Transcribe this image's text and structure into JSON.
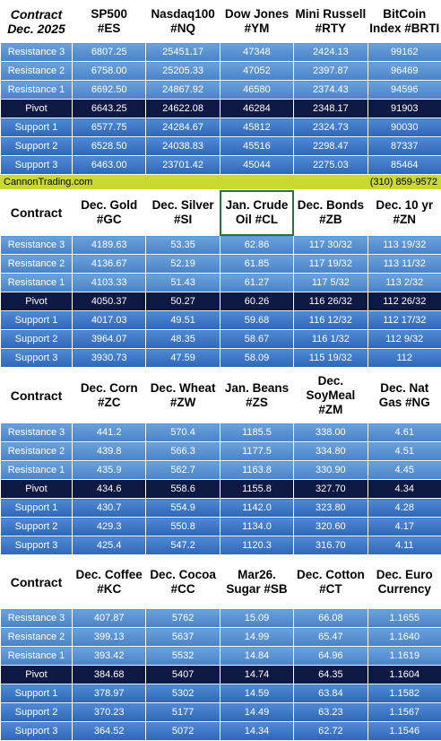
{
  "colors": {
    "resistance": "#5a92d4",
    "support": "#3f78c6",
    "pivot": "#0f1a44",
    "strip": "#c9d92f"
  },
  "footer": {
    "site": "CannonTrading.com",
    "phone": "(310) 859-9572"
  },
  "tables": [
    {
      "corner": "Contract\nDec. 2025",
      "headers": [
        "SP500\n#ES",
        "Nasdaq100\n#NQ",
        "Dow Jones\n#YM",
        "Mini Russell\n#RTY",
        "BitCoin\nIndex #BRTI"
      ],
      "rows": [
        {
          "label": "Resistance 3",
          "kind": "r",
          "values": [
            "6807.25",
            "25451.17",
            "47348",
            "2424.13",
            "99162"
          ]
        },
        {
          "label": "Resistance 2",
          "kind": "r",
          "values": [
            "6758.00",
            "25205.33",
            "47052",
            "2397.87",
            "96469"
          ]
        },
        {
          "label": "Resistance 1",
          "kind": "r",
          "values": [
            "6692.50",
            "24867.92",
            "46580",
            "2374.43",
            "94596"
          ]
        },
        {
          "label": "Pivot",
          "kind": "p",
          "values": [
            "6643.25",
            "24622.08",
            "46284",
            "2348.17",
            "91903"
          ]
        },
        {
          "label": "Support 1",
          "kind": "s",
          "values": [
            "6577.75",
            "24284.67",
            "45812",
            "2324.73",
            "90030"
          ]
        },
        {
          "label": "Support 2",
          "kind": "s",
          "values": [
            "6528.50",
            "24038.83",
            "45516",
            "2298.47",
            "87337"
          ]
        },
        {
          "label": "Support 3",
          "kind": "s",
          "values": [
            "6463.00",
            "23701.42",
            "45044",
            "2275.03",
            "85464"
          ]
        }
      ]
    },
    {
      "corner": "Contract",
      "headers": [
        "Dec. Gold\n#GC",
        "Dec. Silver\n#SI",
        "Jan. Crude\nOil #CL",
        "Dec. Bonds\n#ZB",
        "Dec. 10 yr\n#ZN"
      ],
      "rows": [
        {
          "label": "Resistance 3",
          "kind": "r",
          "values": [
            "4189.63",
            "53.35",
            "62.86",
            "117 30/32",
            "113 19/32"
          ]
        },
        {
          "label": "Resistance 2",
          "kind": "r",
          "values": [
            "4136.67",
            "52.19",
            "61.85",
            "117 19/32",
            "113 11/32"
          ]
        },
        {
          "label": "Resistance 1",
          "kind": "r",
          "values": [
            "4103.33",
            "51.43",
            "61.27",
            "117  5/32",
            "113  2/32"
          ]
        },
        {
          "label": "Pivot",
          "kind": "p",
          "values": [
            "4050.37",
            "50.27",
            "60.26",
            "116 26/32",
            "112 26/32"
          ]
        },
        {
          "label": "Support 1",
          "kind": "s",
          "values": [
            "4017.03",
            "49.51",
            "59.68",
            "116 12/32",
            "112 17/32"
          ]
        },
        {
          "label": "Support 2",
          "kind": "s",
          "values": [
            "3964.07",
            "48.35",
            "58.67",
            "116  1/32",
            "112  9/32"
          ]
        },
        {
          "label": "Support 3",
          "kind": "s",
          "values": [
            "3930.73",
            "47.59",
            "58.09",
            "115 19/32",
            "112"
          ]
        }
      ]
    },
    {
      "corner": "Contract",
      "headers": [
        "Dec. Corn\n#ZC",
        "Dec.  Wheat\n#ZW",
        "Jan. Beans\n#ZS",
        "Dec.\nSoyMeal\n#ZM",
        "Dec. Nat\nGas #NG"
      ],
      "rows": [
        {
          "label": "Resistance 3",
          "kind": "r",
          "values": [
            "441.2",
            "570.4",
            "1185.5",
            "338.00",
            "4.61"
          ]
        },
        {
          "label": "Resistance 2",
          "kind": "r",
          "values": [
            "439.8",
            "566.3",
            "1177.5",
            "334.80",
            "4.51"
          ]
        },
        {
          "label": "Resistance 1",
          "kind": "r",
          "values": [
            "435.9",
            "562.7",
            "1163.8",
            "330.90",
            "4.45"
          ]
        },
        {
          "label": "Pivot",
          "kind": "p",
          "values": [
            "434.6",
            "558.6",
            "1155.8",
            "327.70",
            "4.34"
          ]
        },
        {
          "label": "Support 1",
          "kind": "s",
          "values": [
            "430.7",
            "554.9",
            "1142.0",
            "323.80",
            "4.28"
          ]
        },
        {
          "label": "Support 2",
          "kind": "s",
          "values": [
            "429.3",
            "550.8",
            "1134.0",
            "320.60",
            "4.17"
          ]
        },
        {
          "label": "Support 3",
          "kind": "s",
          "values": [
            "425.4",
            "547.2",
            "1120.3",
            "316.70",
            "4.11"
          ]
        }
      ]
    },
    {
      "corner": "Contract",
      "headers": [
        "Dec. Coffee\n#KC",
        "Dec. Cocoa\n#CC",
        "Mar26.\nSugar #SB",
        "Dec. Cotton\n#CT",
        "Dec. Euro\nCurrency"
      ],
      "rows": [
        {
          "label": "Resistance 3",
          "kind": "r",
          "values": [
            "407.87",
            "5762",
            "15.09",
            "66.08",
            "1.1655"
          ]
        },
        {
          "label": "Resistance 2",
          "kind": "r",
          "values": [
            "399.13",
            "5637",
            "14.99",
            "65.47",
            "1.1640"
          ]
        },
        {
          "label": "Resistance 1",
          "kind": "r",
          "values": [
            "393.42",
            "5532",
            "14.84",
            "64.96",
            "1.1619"
          ]
        },
        {
          "label": "Pivot",
          "kind": "p",
          "values": [
            "384.68",
            "5407",
            "14.74",
            "64.35",
            "1.1604"
          ]
        },
        {
          "label": "Support 1",
          "kind": "s",
          "values": [
            "378.97",
            "5302",
            "14.59",
            "63.84",
            "1.1582"
          ]
        },
        {
          "label": "Support 2",
          "kind": "s",
          "values": [
            "370.23",
            "5177",
            "14.49",
            "63.23",
            "1.1567"
          ]
        },
        {
          "label": "Support 3",
          "kind": "s",
          "values": [
            "364.52",
            "5072",
            "14.34",
            "62.72",
            "1.1546"
          ]
        }
      ]
    }
  ]
}
